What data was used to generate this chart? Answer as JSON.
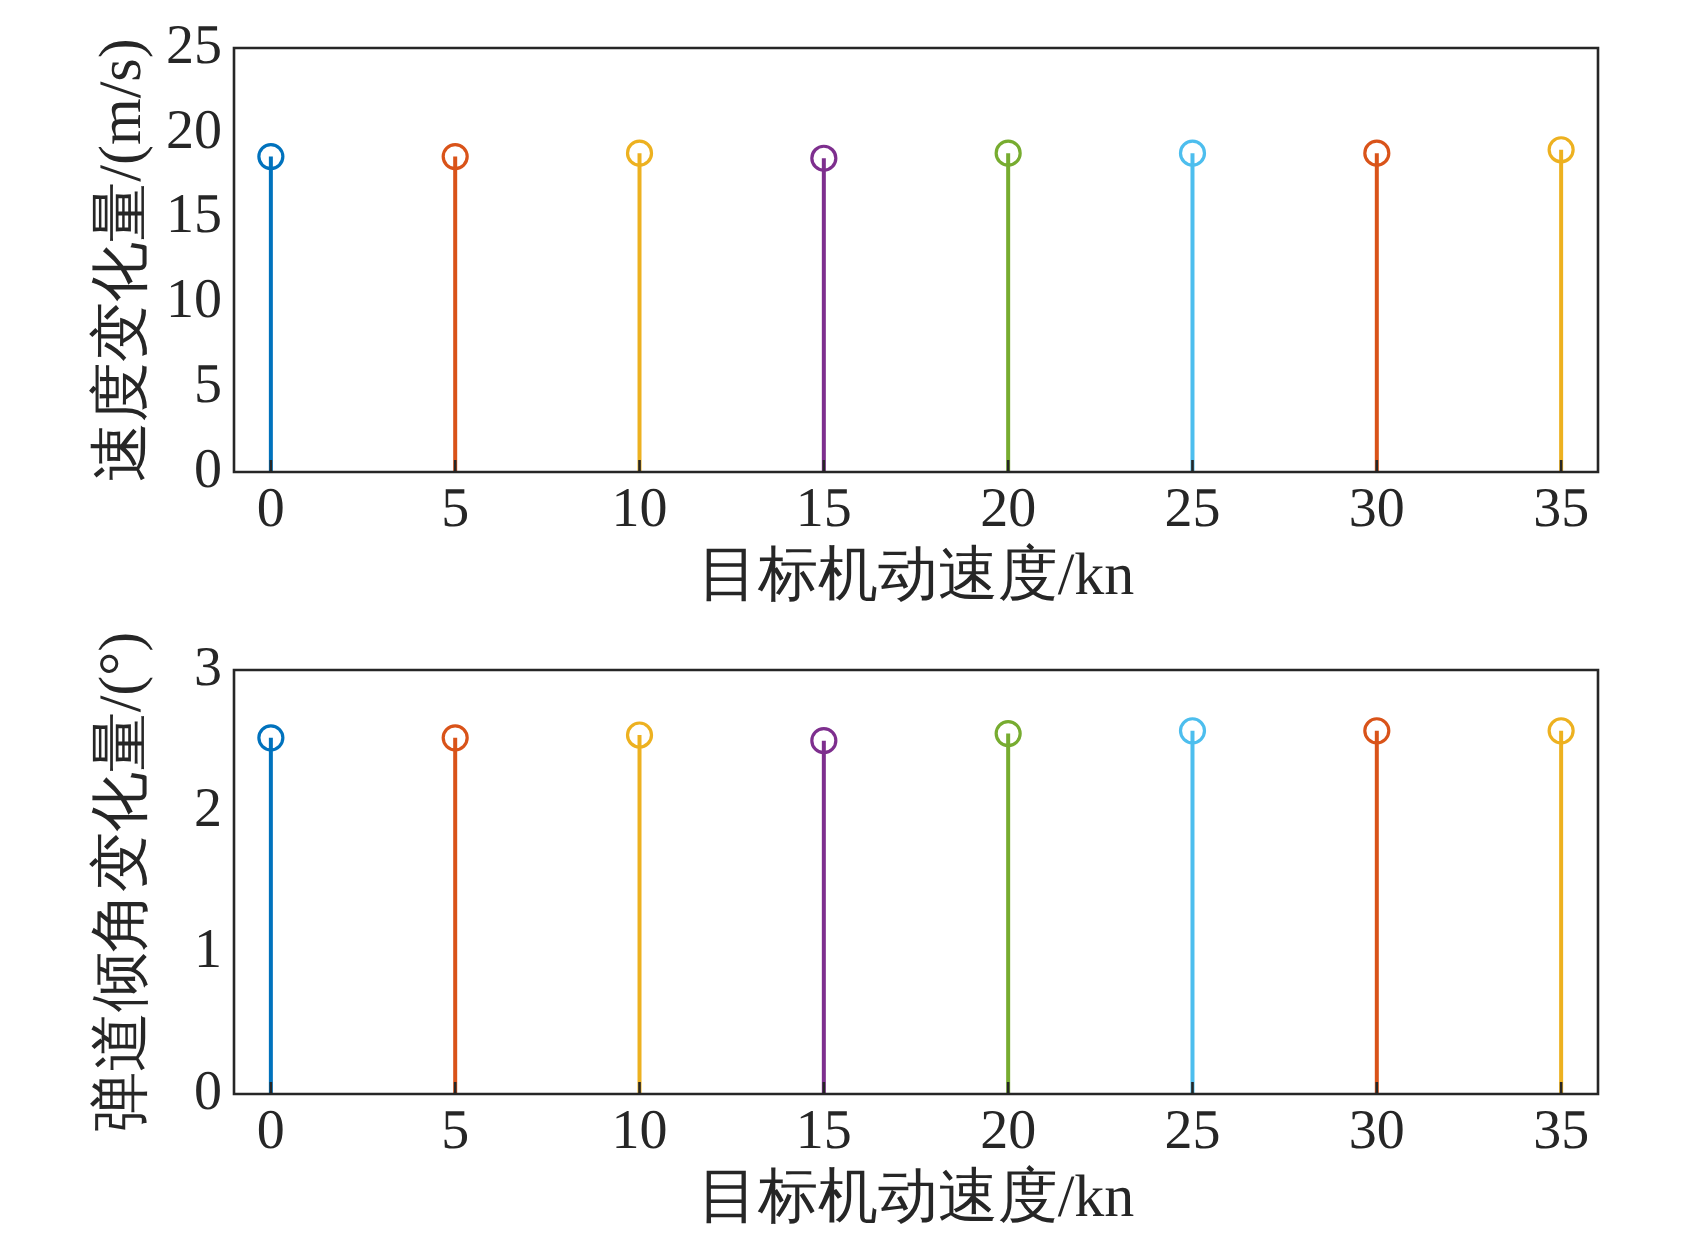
{
  "chart_data": [
    {
      "type": "lollipop",
      "xlabel": "目标机动速度/kn",
      "ylabel": "速度变化量/(m/s)",
      "x": [
        0,
        5,
        10,
        15,
        20,
        25,
        30,
        35
      ],
      "values": [
        18.6,
        18.6,
        18.8,
        18.5,
        18.8,
        18.8,
        18.8,
        19
      ],
      "colors": [
        "#0072bd",
        "#d95319",
        "#edb120",
        "#7e2f8e",
        "#77ac30",
        "#4dbeee",
        "#d95319",
        "#edb120"
      ],
      "xlim": [
        -1,
        36
      ],
      "xticks": [
        0,
        5,
        10,
        15,
        20,
        25,
        30,
        35
      ],
      "ylim": [
        0,
        25
      ],
      "yticks": [
        0,
        5,
        10,
        15,
        20,
        25
      ],
      "marker": "circle"
    },
    {
      "type": "lollipop",
      "xlabel": "目标机动速度/kn",
      "ylabel": "弹道倾角变化量/(°)",
      "x": [
        0,
        5,
        10,
        15,
        20,
        25,
        30,
        35
      ],
      "values": [
        2.52,
        2.52,
        2.54,
        2.5,
        2.55,
        2.57,
        2.57,
        2.57
      ],
      "colors": [
        "#0072bd",
        "#d95319",
        "#edb120",
        "#7e2f8e",
        "#77ac30",
        "#4dbeee",
        "#d95319",
        "#edb120"
      ],
      "xlim": [
        -1,
        36
      ],
      "xticks": [
        0,
        5,
        10,
        15,
        20,
        25,
        30,
        35
      ],
      "ylim": [
        0,
        3
      ],
      "yticks": [
        0,
        1,
        2,
        3
      ],
      "marker": "circle"
    }
  ]
}
